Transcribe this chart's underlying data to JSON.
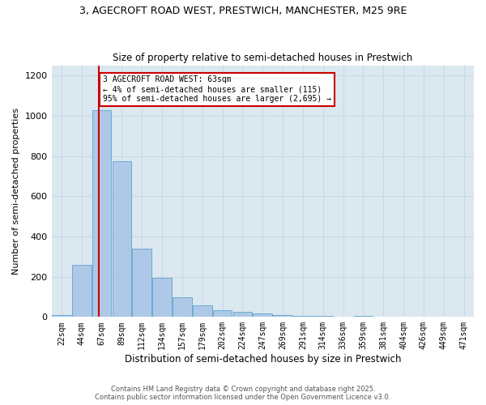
{
  "title_line1": "3, AGECROFT ROAD WEST, PRESTWICH, MANCHESTER, M25 9RE",
  "title_line2": "Size of property relative to semi-detached houses in Prestwich",
  "xlabel": "Distribution of semi-detached houses by size in Prestwich",
  "ylabel": "Number of semi-detached properties",
  "bins": [
    "22sqm",
    "44sqm",
    "67sqm",
    "89sqm",
    "112sqm",
    "134sqm",
    "157sqm",
    "179sqm",
    "202sqm",
    "224sqm",
    "247sqm",
    "269sqm",
    "291sqm",
    "314sqm",
    "336sqm",
    "359sqm",
    "381sqm",
    "404sqm",
    "426sqm",
    "449sqm",
    "471sqm"
  ],
  "bin_edges": [
    0,
    1,
    2,
    3,
    4,
    5,
    6,
    7,
    8,
    9,
    10,
    11,
    12,
    13,
    14,
    15,
    16,
    17,
    18,
    19,
    20
  ],
  "values": [
    10,
    258,
    1030,
    775,
    340,
    195,
    100,
    58,
    35,
    25,
    18,
    8,
    5,
    4,
    0,
    4,
    0,
    0,
    0,
    0,
    0
  ],
  "bar_color": "#aec9e8",
  "bar_edge_color": "#6aaad4",
  "subject_bin": 1.85,
  "annotation_line1": "3 AGECROFT ROAD WEST: 63sqm",
  "annotation_line2": "← 4% of semi-detached houses are smaller (115)",
  "annotation_line3": "95% of semi-detached houses are larger (2,695) →",
  "annotation_box_color": "#ffffff",
  "annotation_box_edge_color": "#cc0000",
  "vline_color": "#cc0000",
  "ylim": [
    0,
    1250
  ],
  "yticks": [
    0,
    200,
    400,
    600,
    800,
    1000,
    1200
  ],
  "grid_color": "#c8d8e8",
  "bg_color": "#dce8f0",
  "footer_line1": "Contains HM Land Registry data © Crown copyright and database right 2025.",
  "footer_line2": "Contains public sector information licensed under the Open Government Licence v3.0."
}
